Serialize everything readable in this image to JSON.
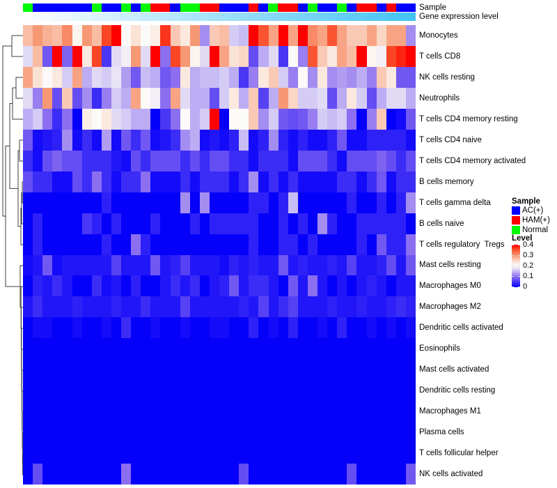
{
  "annotation_tracks": {
    "sample_label": "Sample",
    "expression_label": "Gene expression level"
  },
  "legends": {
    "sample": {
      "title": "Sample",
      "items": [
        {
          "label": "AC(+)",
          "color": "#0000FE"
        },
        {
          "label": "HAM(+)",
          "color": "#FB0100"
        },
        {
          "label": "Normal",
          "color": "#01F801"
        }
      ]
    },
    "level": {
      "title": "Level",
      "tick_labels": [
        "0.4",
        "0.3",
        "0.2",
        "0.1",
        "0"
      ]
    }
  },
  "chart_data": {
    "type": "heatmap",
    "title": "",
    "rows": [
      "Monocytes",
      "T cells CD8",
      "NK cells resting",
      "Neutrophils",
      "T cells CD4 memory resting",
      "T cells CD4 naive",
      "T cells CD4 memory activated",
      "B cells memory",
      "T cells gamma delta",
      "B cells naive",
      "T cells regulatory  Tregs",
      "Mast cells resting",
      "Macrophages M0",
      "Macrophages M2",
      "Dendritic cells activated",
      "Eosinophils",
      "Mast cells activated",
      "Dendritic cells resting",
      "Macrophages M1",
      "Plasma cells",
      "T cells follicular helper",
      "NK cells activated"
    ],
    "columns_count": 40,
    "values": [
      [
        0.27,
        0.3,
        0.28,
        0.27,
        0.31,
        0.21,
        0.3,
        0.27,
        0.36,
        0.42,
        0.2,
        0.24,
        0.2,
        0.22,
        0.37,
        0.26,
        0.23,
        0.3,
        0.12,
        0.26,
        0.27,
        0.16,
        0.15,
        0.42,
        0.35,
        0.29,
        0.42,
        0.29,
        0.42,
        0.31,
        0.29,
        0.35,
        0.29,
        0.26,
        0.26,
        0.29,
        0.25,
        0.29,
        0.29,
        0.12
      ],
      [
        0.17,
        0.27,
        0.08,
        0.42,
        0.09,
        0.42,
        0.23,
        0.36,
        0.05,
        0.17,
        0.19,
        0.3,
        0.17,
        0.42,
        0.1,
        0.36,
        0.3,
        0.21,
        0.17,
        0.42,
        0.29,
        0.24,
        0.25,
        0.07,
        0.14,
        0.17,
        0.05,
        0.2,
        0.11,
        0.35,
        0.26,
        0.23,
        0.29,
        0.27,
        0.42,
        0.21,
        0.19,
        0.36,
        0.38,
        0.42
      ],
      [
        0.29,
        0.24,
        0.2,
        0.23,
        0.16,
        0.29,
        0.14,
        0.17,
        0.16,
        0.18,
        0.13,
        0.08,
        0.15,
        0.14,
        0.08,
        0.1,
        0.23,
        0.14,
        0.15,
        0.15,
        0.16,
        0.14,
        0.05,
        0.11,
        0.23,
        0.26,
        0.16,
        0.11,
        0.2,
        0.12,
        0.23,
        0.12,
        0.13,
        0.12,
        0.14,
        0.11,
        0.26,
        0.23,
        0.08,
        0.08
      ],
      [
        0.17,
        0.11,
        0.3,
        0.07,
        0.26,
        0.07,
        0.12,
        0.04,
        0.11,
        0.16,
        0.14,
        0.29,
        0.2,
        0.19,
        0.1,
        0.29,
        0.17,
        0.14,
        0.14,
        0.07,
        0.16,
        0.23,
        0.14,
        0.26,
        0.06,
        0.14,
        0.3,
        0.25,
        0.16,
        0.16,
        0.17,
        0.07,
        0.14,
        0.23,
        0.16,
        0.07,
        0.14,
        0.17,
        0.17,
        0.14
      ],
      [
        0.14,
        0.16,
        0.1,
        0.04,
        0.1,
        0.0,
        0.22,
        0.2,
        0.23,
        0.17,
        0.16,
        0.14,
        0.14,
        0.0,
        0.05,
        0.1,
        0.2,
        0.14,
        0.16,
        0.42,
        0.0,
        0.2,
        0.2,
        0.26,
        0.12,
        0.16,
        0.08,
        0.07,
        0.08,
        0.11,
        0.16,
        0.15,
        0.16,
        0.1,
        0.0,
        0.11,
        0.26,
        0.0,
        0.01,
        0.08
      ],
      [
        0.08,
        0.01,
        0.02,
        0.03,
        0.12,
        0.01,
        0.04,
        0.01,
        0.13,
        0.01,
        0.08,
        0.04,
        0.08,
        0.01,
        0.02,
        0.04,
        0.12,
        0.14,
        0.01,
        0.02,
        0.01,
        0.03,
        0.15,
        0.01,
        0.03,
        0.12,
        0.03,
        0.01,
        0.03,
        0.01,
        0.01,
        0.03,
        0.08,
        0.01,
        0.01,
        0.03,
        0.03,
        0.03,
        0.03,
        0.01
      ],
      [
        0.04,
        0.01,
        0.07,
        0.09,
        0.07,
        0.07,
        0.04,
        0.04,
        0.04,
        0.02,
        0.01,
        0.07,
        0.04,
        0.07,
        0.07,
        0.07,
        0.04,
        0.07,
        0.04,
        0.07,
        0.07,
        0.04,
        0.04,
        0.01,
        0.04,
        0.04,
        0.04,
        0.01,
        0.07,
        0.07,
        0.07,
        0.04,
        0.01,
        0.07,
        0.07,
        0.07,
        0.09,
        0.07,
        0.04,
        0.07
      ],
      [
        0.07,
        0.04,
        0.04,
        0.01,
        0.01,
        0.07,
        0.04,
        0.1,
        0.04,
        0.01,
        0.04,
        0.04,
        0.1,
        0.01,
        0.01,
        0.01,
        0.04,
        0.01,
        0.04,
        0.04,
        0.04,
        0.01,
        0.04,
        0.12,
        0.01,
        0.04,
        0.01,
        0.04,
        0.01,
        0.01,
        0.01,
        0.01,
        0.04,
        0.04,
        0.01,
        0.04,
        0.08,
        0.01,
        0.04,
        0.04
      ],
      [
        0,
        0,
        0,
        0,
        0,
        0,
        0,
        0,
        0.03,
        0,
        0,
        0,
        0,
        0,
        0,
        0,
        0.12,
        0,
        0.12,
        0,
        0,
        0,
        0,
        0.03,
        0.03,
        0,
        0.03,
        0.15,
        0,
        0,
        0,
        0,
        0,
        0.03,
        0,
        0,
        0.03,
        0,
        0.03,
        0.12
      ],
      [
        0,
        0.03,
        0,
        0,
        0,
        0,
        0.05,
        0.03,
        0,
        0.03,
        0,
        0,
        0,
        0.03,
        0,
        0,
        0,
        0.03,
        0,
        0.03,
        0.03,
        0.03,
        0.03,
        0.03,
        0,
        0,
        0.03,
        0,
        0.03,
        0,
        0.12,
        0.03,
        0,
        0,
        0.03,
        0.03,
        0.03,
        0.03,
        0.03,
        0
      ],
      [
        0,
        0.03,
        0,
        0,
        0,
        0,
        0,
        0,
        0.03,
        0,
        0,
        0.1,
        0.03,
        0,
        0,
        0,
        0,
        0,
        0,
        0,
        0,
        0,
        0,
        0.03,
        0,
        0,
        0.03,
        0.03,
        0,
        0.03,
        0,
        0,
        0,
        0,
        0.03,
        0,
        0.08,
        0.03,
        0.03,
        0.1
      ],
      [
        0.01,
        0.02,
        0.08,
        0.01,
        0.02,
        0.02,
        0.02,
        0.02,
        0.02,
        0.06,
        0.02,
        0.02,
        0.02,
        0.08,
        0.02,
        0.03,
        0.06,
        0.02,
        0.02,
        0.02,
        0.01,
        0.03,
        0.02,
        0.03,
        0.02,
        0.02,
        0.08,
        0.02,
        0.03,
        0.02,
        0.02,
        0.03,
        0.02,
        0.06,
        0.02,
        0.02,
        0.03,
        0.07,
        0.02,
        0.08
      ],
      [
        0,
        0.03,
        0.02,
        0.04,
        0.02,
        0,
        0,
        0.04,
        0.01,
        0.02,
        0,
        0.03,
        0,
        0,
        0.02,
        0.04,
        0.02,
        0.04,
        0,
        0.02,
        0.03,
        0.08,
        0.02,
        0.04,
        0.04,
        0.02,
        0,
        0.08,
        0.02,
        0.1,
        0.02,
        0,
        0.02,
        0,
        0.02,
        0.03,
        0.02,
        0,
        0.02,
        0.02
      ],
      [
        0.02,
        0.04,
        0.02,
        0.02,
        0.02,
        0.03,
        0.02,
        0.02,
        0.02,
        0.03,
        0.02,
        0.02,
        0.04,
        0.02,
        0.02,
        0.02,
        0.06,
        0.02,
        0.02,
        0.02,
        0.02,
        0.02,
        0.03,
        0.02,
        0.06,
        0.02,
        0.04,
        0.06,
        0.02,
        0.02,
        0.02,
        0.03,
        0.02,
        0.02,
        0.03,
        0.02,
        0.02,
        0.03,
        0.04,
        0.03
      ],
      [
        0,
        0.01,
        0.01,
        0,
        0,
        0.01,
        0,
        0,
        0.01,
        0,
        0.04,
        0,
        0,
        0.01,
        0,
        0,
        0.01,
        0,
        0,
        0.01,
        0.01,
        0,
        0,
        0.03,
        0,
        0.01,
        0,
        0.03,
        0,
        0,
        0.01,
        0,
        0.03,
        0,
        0,
        0.01,
        0,
        0.01,
        0,
        0.01
      ],
      [
        0,
        0,
        0,
        0,
        0,
        0,
        0,
        0,
        0,
        0,
        0,
        0,
        0,
        0,
        0,
        0,
        0,
        0,
        0,
        0,
        0,
        0,
        0,
        0,
        0,
        0,
        0,
        0,
        0,
        0,
        0,
        0,
        0,
        0,
        0,
        0,
        0,
        0,
        0,
        0
      ],
      [
        0,
        0,
        0,
        0,
        0,
        0,
        0,
        0,
        0,
        0,
        0,
        0,
        0,
        0,
        0,
        0,
        0,
        0,
        0,
        0,
        0,
        0,
        0,
        0,
        0,
        0,
        0,
        0,
        0,
        0,
        0,
        0,
        0,
        0,
        0,
        0,
        0,
        0,
        0,
        0
      ],
      [
        0,
        0,
        0,
        0,
        0,
        0,
        0,
        0,
        0,
        0,
        0,
        0,
        0,
        0,
        0,
        0,
        0,
        0,
        0,
        0,
        0,
        0,
        0,
        0,
        0,
        0,
        0,
        0,
        0,
        0,
        0,
        0,
        0,
        0,
        0,
        0,
        0,
        0,
        0,
        0
      ],
      [
        0,
        0,
        0,
        0,
        0,
        0,
        0,
        0,
        0,
        0,
        0,
        0,
        0,
        0,
        0,
        0,
        0,
        0,
        0,
        0,
        0,
        0,
        0,
        0,
        0,
        0,
        0,
        0,
        0,
        0,
        0,
        0,
        0,
        0,
        0,
        0,
        0,
        0,
        0,
        0
      ],
      [
        0,
        0,
        0,
        0,
        0,
        0,
        0,
        0,
        0,
        0,
        0,
        0,
        0,
        0,
        0,
        0,
        0,
        0,
        0,
        0,
        0,
        0,
        0,
        0,
        0,
        0,
        0,
        0,
        0,
        0,
        0,
        0,
        0,
        0,
        0,
        0,
        0,
        0,
        0,
        0
      ],
      [
        0,
        0,
        0,
        0,
        0,
        0,
        0,
        0,
        0,
        0,
        0,
        0,
        0,
        0,
        0,
        0,
        0,
        0,
        0,
        0,
        0,
        0,
        0,
        0,
        0,
        0,
        0,
        0,
        0,
        0,
        0,
        0,
        0,
        0,
        0,
        0,
        0,
        0,
        0,
        0
      ],
      [
        0,
        0.07,
        0,
        0,
        0,
        0,
        0,
        0,
        0,
        0,
        0.1,
        0,
        0,
        0,
        0,
        0,
        0,
        0,
        0,
        0,
        0,
        0,
        0.07,
        0,
        0,
        0,
        0,
        0,
        0,
        0,
        0,
        0,
        0,
        0.07,
        0,
        0,
        0,
        0,
        0,
        0.08
      ]
    ],
    "value_scale": {
      "min": 0,
      "max": 0.4,
      "palette": "blue-white-red",
      "stops": [
        {
          "u": 0,
          "rgb": [
            5,
            0,
            250
          ]
        },
        {
          "u": 0.25,
          "rgb": [
            140,
            110,
            240
          ]
        },
        {
          "u": 0.42,
          "rgb": [
            222,
            216,
            245
          ]
        },
        {
          "u": 0.5,
          "rgb": [
            252,
            250,
            248
          ]
        },
        {
          "u": 0.6,
          "rgb": [
            250,
            226,
            213
          ]
        },
        {
          "u": 0.75,
          "rgb": [
            247,
            152,
            116
          ]
        },
        {
          "u": 0.9,
          "rgb": [
            250,
            70,
            36
          ]
        },
        {
          "u": 1,
          "rgb": [
            255,
            0,
            0
          ]
        }
      ]
    },
    "column_groups": [
      "Normal",
      "AC(+)",
      "AC(+)",
      "AC(+)",
      "AC(+)",
      "AC(+)",
      "AC(+)",
      "Normal",
      "AC(+)",
      "AC(+)",
      "Normal",
      "AC(+)",
      "Normal",
      "HAM(+)",
      "HAM(+)",
      "AC(+)",
      "Normal",
      "Normal",
      "HAM(+)",
      "HAM(+)",
      "AC(+)",
      "AC(+)",
      "AC(+)",
      "HAM(+)",
      "AC(+)",
      "Normal",
      "HAM(+)",
      "HAM(+)",
      "AC(+)",
      "Normal",
      "AC(+)",
      "AC(+)",
      "Normal",
      "AC(+)",
      "HAM(+)",
      "HAM(+)",
      "AC(+)",
      "HAM(+)",
      "AC(+)",
      "AC(+)"
    ],
    "column_group_colors": {
      "AC(+)": "#0000FE",
      "HAM(+)": "#FB0100",
      "Normal": "#01F801"
    },
    "column_expression": [
      0,
      0.03,
      0.05,
      0.08,
      0.1,
      0.13,
      0.15,
      0.18,
      0.21,
      0.23,
      0.26,
      0.28,
      0.31,
      0.33,
      0.36,
      0.38,
      0.41,
      0.44,
      0.46,
      0.49,
      0.51,
      0.54,
      0.56,
      0.59,
      0.62,
      0.64,
      0.67,
      0.69,
      0.72,
      0.74,
      0.77,
      0.79,
      0.82,
      0.85,
      0.87,
      0.9,
      0.92,
      0.95,
      0.97,
      1
    ],
    "expression_gradient": {
      "from_rgb": [
        252,
        254,
        255
      ],
      "to_rgb": [
        69,
        195,
        243
      ]
    }
  }
}
